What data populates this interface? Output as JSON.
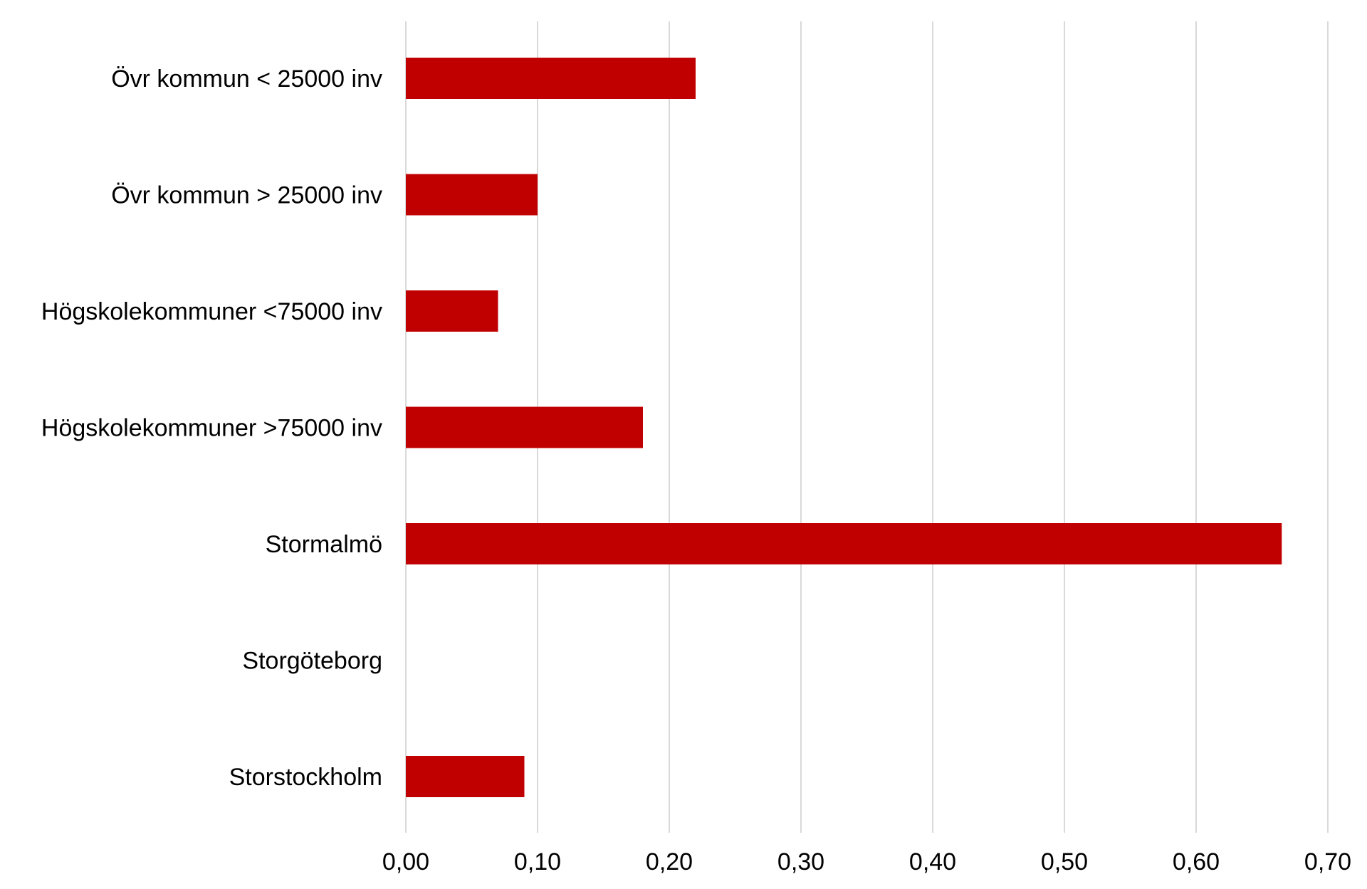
{
  "chart_data": {
    "type": "bar",
    "orientation": "horizontal",
    "categories": [
      "Övr kommun < 25000 inv",
      "Övr kommun > 25000 inv",
      "Högskolekommuner <75000 inv",
      "Högskolekommuner >75000 inv",
      "Stormalmö",
      "Storgöteborg",
      "Storstockholm"
    ],
    "values": [
      0.22,
      0.1,
      0.07,
      0.18,
      0.665,
      0.0,
      0.09
    ],
    "xlim": [
      0,
      0.7
    ],
    "xticks": [
      "0,00",
      "0,10",
      "0,20",
      "0,30",
      "0,40",
      "0,50",
      "0,60",
      "0,70"
    ],
    "grid": "vertical",
    "bar_color": "#c00000",
    "grid_color": "#d9d9d9",
    "title": "",
    "xlabel": "",
    "ylabel": ""
  }
}
